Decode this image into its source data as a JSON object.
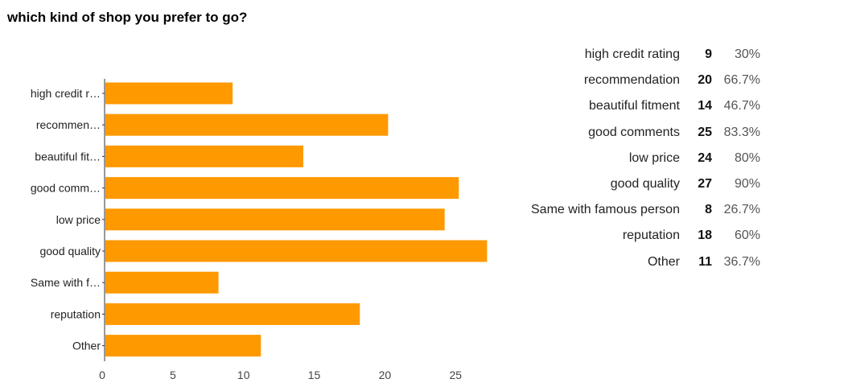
{
  "question": "which kind of shop you prefer to go?",
  "chart_data": {
    "type": "bar",
    "orientation": "horizontal",
    "categories": [
      "high credit r…",
      "recommen…",
      "beautiful  fit…",
      "good comm…",
      "low price",
      "good quality",
      "Same with f…",
      "reputation",
      "Other"
    ],
    "values": [
      9,
      20,
      14,
      25,
      24,
      27,
      8,
      18,
      11
    ],
    "xlim": [
      0,
      27
    ],
    "xticks": [
      "0",
      "5",
      "10",
      "15",
      "20",
      "25"
    ],
    "grid": false,
    "bar_color": "#ff9900"
  },
  "summary": [
    {
      "label": "high credit rating",
      "count": "9",
      "percent": "30%"
    },
    {
      "label": "recommendation",
      "count": "20",
      "percent": "66.7%"
    },
    {
      "label": "beautiful  fitment",
      "count": "14",
      "percent": "46.7%"
    },
    {
      "label": "good comments",
      "count": "25",
      "percent": "83.3%"
    },
    {
      "label": "low price",
      "count": "24",
      "percent": "80%"
    },
    {
      "label": "good quality",
      "count": "27",
      "percent": "90%"
    },
    {
      "label": "Same with famous person",
      "count": "8",
      "percent": "26.7%"
    },
    {
      "label": "reputation",
      "count": "18",
      "percent": "60%"
    },
    {
      "label": "Other",
      "count": "11",
      "percent": "36.7%"
    }
  ]
}
